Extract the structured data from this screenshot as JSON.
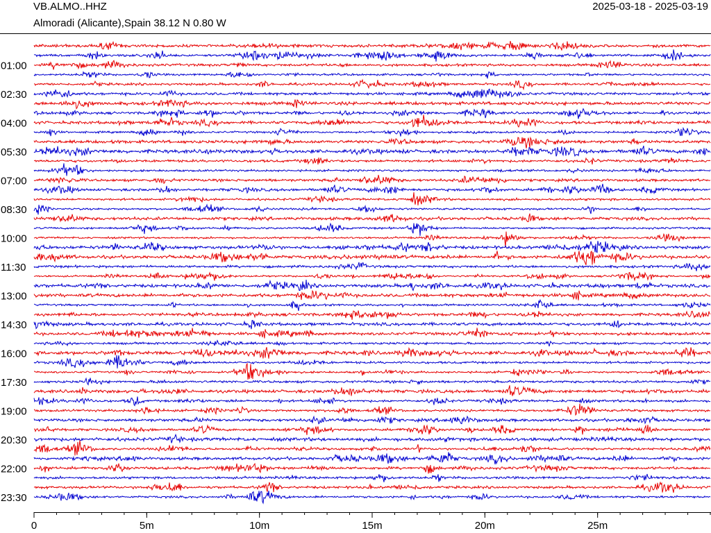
{
  "header": {
    "station": "VB.ALMO..HHZ",
    "location": "Almoradi (Alicante),Spain  38.12 N 0.80 W",
    "date_range": "2025-03-18 - 2025-03-19"
  },
  "chart_data": {
    "type": "helicorder",
    "categories": [
      null,
      null,
      "01:00",
      null,
      null,
      "02:30",
      null,
      null,
      "04:00",
      null,
      null,
      "05:30",
      null,
      null,
      "07:00",
      null,
      null,
      "08:30",
      null,
      null,
      "10:00",
      null,
      null,
      "11:30",
      null,
      null,
      "13:00",
      null,
      null,
      "14:30",
      null,
      null,
      "16:00",
      null,
      null,
      "17:30",
      null,
      null,
      "19:00",
      null,
      null,
      "20:30",
      null,
      null,
      "22:00",
      null,
      null,
      "23:30"
    ],
    "colors": [
      "#e60000",
      "#0000d0"
    ],
    "xlim": [
      0,
      30
    ],
    "xticks": [
      0,
      {
        "value": 5,
        "label": "5m"
      },
      {
        "value": 10,
        "label": "10m"
      },
      {
        "value": 15,
        "label": "15m"
      },
      {
        "value": 20,
        "label": "20m"
      },
      {
        "value": 25,
        "label": "25m"
      }
    ],
    "minor_tick_step": 1
  }
}
